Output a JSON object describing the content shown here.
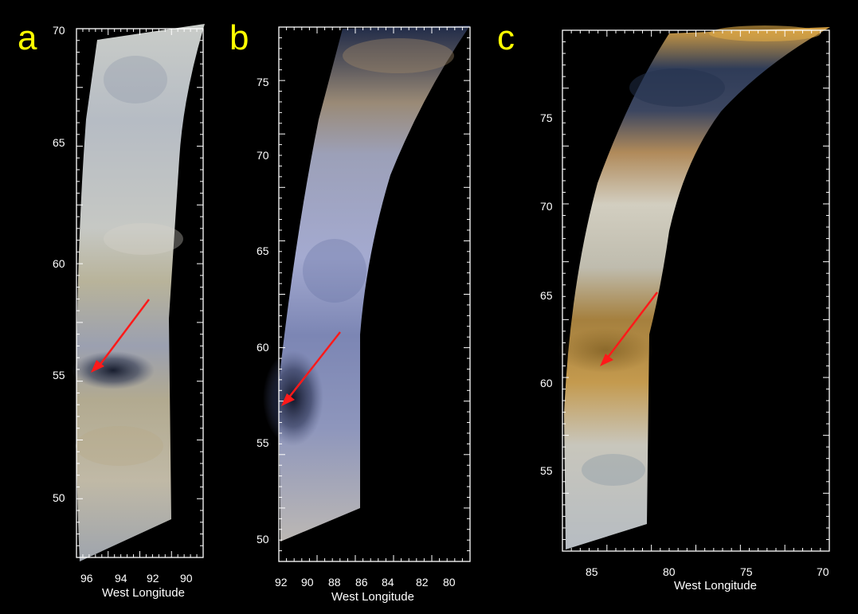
{
  "colors": {
    "background": "#000000",
    "panel_letter": "#ffff00",
    "axis": "#ffffff",
    "arrow": "#ff1a1a"
  },
  "panels": [
    {
      "letter": "a",
      "y_ticks": [
        "70",
        "65",
        "60",
        "55",
        "50"
      ],
      "x_ticks": [
        "96",
        "94",
        "92",
        "90"
      ],
      "x_title": "West Longitude",
      "palette": [
        "#c7cbc8",
        "#b9b59f",
        "#aaa48a",
        "#8c93a3",
        "#2a3042"
      ]
    },
    {
      "letter": "b",
      "y_ticks": [
        "75",
        "70",
        "65",
        "60",
        "55",
        "50"
      ],
      "x_ticks": [
        "92",
        "90",
        "88",
        "86",
        "84",
        "82",
        "80"
      ],
      "x_title": "West Longitude",
      "palette": [
        "#243049",
        "#8a7a66",
        "#9aa0c0",
        "#7a83ad",
        "#1c2238"
      ]
    },
    {
      "letter": "c",
      "y_ticks": [
        "75",
        "70",
        "65",
        "60",
        "55"
      ],
      "x_ticks": [
        "85",
        "80",
        "75",
        "70"
      ],
      "x_title": "West Longitude",
      "palette": [
        "#d9a23a",
        "#2f3e57",
        "#a8875a",
        "#c8c4b4",
        "#8f6a2a"
      ]
    }
  ]
}
